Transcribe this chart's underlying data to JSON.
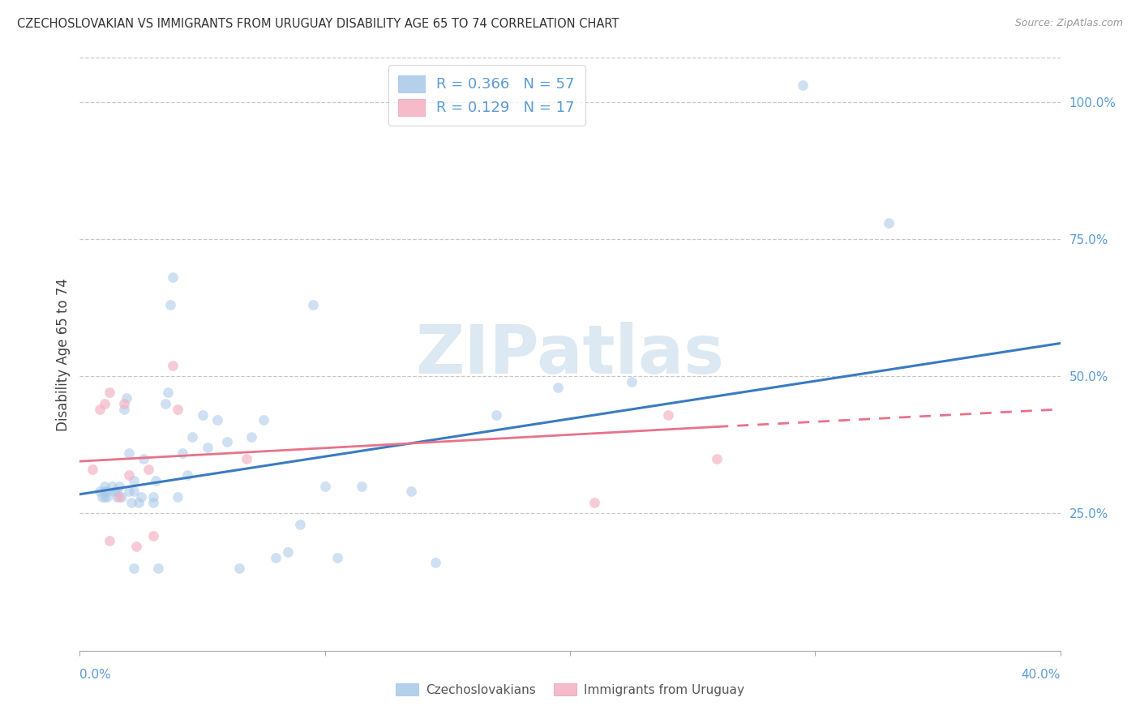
{
  "title": "CZECHOSLOVAKIAN VS IMMIGRANTS FROM URUGUAY DISABILITY AGE 65 TO 74 CORRELATION CHART",
  "source": "Source: ZipAtlas.com",
  "ylabel": "Disability Age 65 to 74",
  "xlim": [
    0.0,
    0.4
  ],
  "ylim": [
    0.0,
    1.08
  ],
  "blue_color": "#a8c8e8",
  "pink_color": "#f4afc0",
  "blue_line_color": "#3a7bbf",
  "pink_line_color": "#e8728a",
  "watermark": "ZIPatlas",
  "watermark_color": "#dce8f2",
  "blue_scatter_x": [
    0.008,
    0.009,
    0.01,
    0.01,
    0.01,
    0.011,
    0.011,
    0.013,
    0.014,
    0.015,
    0.015,
    0.016,
    0.017,
    0.018,
    0.019,
    0.02,
    0.02,
    0.021,
    0.022,
    0.022,
    0.022,
    0.024,
    0.025,
    0.026,
    0.03,
    0.03,
    0.031,
    0.032,
    0.035,
    0.036,
    0.037,
    0.038,
    0.04,
    0.042,
    0.044,
    0.046,
    0.05,
    0.052,
    0.056,
    0.06,
    0.065,
    0.07,
    0.075,
    0.08,
    0.085,
    0.09,
    0.095,
    0.1,
    0.105,
    0.115,
    0.135,
    0.145,
    0.17,
    0.195,
    0.225,
    0.295,
    0.33
  ],
  "blue_scatter_y": [
    0.29,
    0.28,
    0.29,
    0.3,
    0.28,
    0.28,
    0.29,
    0.3,
    0.29,
    0.28,
    0.29,
    0.3,
    0.28,
    0.44,
    0.46,
    0.36,
    0.29,
    0.27,
    0.31,
    0.29,
    0.15,
    0.27,
    0.28,
    0.35,
    0.27,
    0.28,
    0.31,
    0.15,
    0.45,
    0.47,
    0.63,
    0.68,
    0.28,
    0.36,
    0.32,
    0.39,
    0.43,
    0.37,
    0.42,
    0.38,
    0.15,
    0.39,
    0.42,
    0.17,
    0.18,
    0.23,
    0.63,
    0.3,
    0.17,
    0.3,
    0.29,
    0.16,
    0.43,
    0.48,
    0.49,
    1.03,
    0.78
  ],
  "pink_scatter_x": [
    0.005,
    0.008,
    0.01,
    0.012,
    0.012,
    0.016,
    0.018,
    0.02,
    0.023,
    0.028,
    0.03,
    0.038,
    0.04,
    0.068,
    0.21,
    0.24,
    0.26
  ],
  "pink_scatter_y": [
    0.33,
    0.44,
    0.45,
    0.47,
    0.2,
    0.28,
    0.45,
    0.32,
    0.19,
    0.33,
    0.21,
    0.52,
    0.44,
    0.35,
    0.27,
    0.43,
    0.35
  ],
  "blue_line": [
    0.0,
    0.285,
    0.4,
    0.56
  ],
  "pink_line_solid": [
    0.0,
    0.345,
    0.26,
    0.408
  ],
  "pink_line_dash": [
    0.26,
    0.408,
    0.41,
    0.442
  ],
  "yticks": [
    0.25,
    0.5,
    0.75,
    1.0
  ],
  "ytick_labels": [
    "25.0%",
    "50.0%",
    "75.0%",
    "100.0%"
  ],
  "legend1_text": "R = 0.366   N = 57",
  "legend2_text": "R = 0.129   N = 17",
  "legend_bottom": [
    "Czechoslovakians",
    "Immigrants from Uruguay"
  ]
}
